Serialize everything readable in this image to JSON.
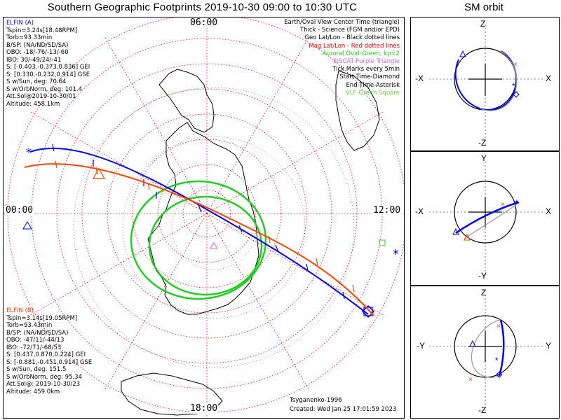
{
  "title": "Southern Geographic Footprints 2019-10-30 09:00 to 10:30 UTC",
  "sm_title": "SM orbit",
  "clock_labels": {
    "top": "06:00",
    "left": "00:00",
    "right": "12:00",
    "bottom": "18:00"
  },
  "elfin_a": {
    "header": "ELFIN (A)",
    "lines": [
      "Tspin=3.24s[18.48RPM]",
      "Torb=93.33min",
      "B/SP: (NA/ND/SD/SA)",
      "OBO: -18/-76/-13/-60",
      "IBO: 30/-49/24/-41",
      "S: [-0.403,-0.373,0.836] GEI",
      "S: [0.330,-0.232,0.914] GSE",
      "S w/Sun, deg: 70.64",
      "S w/OrbNorm, deg: 101.4",
      "Att.Sol@2019-10-30/01",
      "Altitude: 458.1km"
    ],
    "color": "#0000ff"
  },
  "elfin_b": {
    "header": "ELFIN (B)",
    "lines": [
      "Tspin=3.14s[19.05RPM]",
      "Torb=93.43min",
      "B/SP: (NA/ND/SD/SA)",
      "OBO: -47/11/-44/13",
      "IBO: -72/71/-68/53",
      "S: [0.437,0.870,0.224] GEI",
      "S: [-0.881,-0.451,0.914] GSE",
      "S w/Sun, deg: 151.5",
      "S w/OrbNorm, deg: 95.34",
      "Att.Sol@: 2019-10-30/23",
      "Altitude: 459.0km"
    ],
    "color": "#ff4400"
  },
  "legend": [
    {
      "text": "Earth/Oval View Center Time (triangle)",
      "color": "#000000"
    },
    {
      "text": "Thick - Science (FGM and/or EPD)",
      "color": "#000000"
    },
    {
      "text": "Geo Lat/Lon - Black dotted lines",
      "color": "#000000"
    },
    {
      "text": "Mag Lat/Lon - Red dotted lines",
      "color": "#ff0000"
    },
    {
      "text": "Auroral Oval-Green, kp=2",
      "color": "#22cc22"
    },
    {
      "text": "EISCAT-Purple Triangle",
      "color": "#cc66cc"
    },
    {
      "text": "Tick Marks every 5min",
      "color": "#000000"
    },
    {
      "text": "Start Time-Diamond",
      "color": "#000000"
    },
    {
      "text": "End Time-Asterisk",
      "color": "#000000"
    },
    {
      "text": "VLF-Green Square",
      "color": "#66cc44"
    }
  ],
  "credit": {
    "model": "Tsyganenko-1996",
    "created": "Created: Wed Jan 25 17:01:59 2023"
  },
  "sm_panels": [
    {
      "top": "Z",
      "bottom": "-Z",
      "left": "-X",
      "right": "X"
    },
    {
      "top": "Y",
      "bottom": "-Y",
      "left": "-X",
      "right": "X"
    },
    {
      "top": "Z",
      "bottom": "-Z",
      "left": "-Y",
      "right": "Y"
    }
  ],
  "colors": {
    "elfin_a": "#0000ff",
    "elfin_b": "#ff4400",
    "grid": "#ff0000",
    "oval": "#22cc22",
    "geo_grid": "#000000"
  }
}
